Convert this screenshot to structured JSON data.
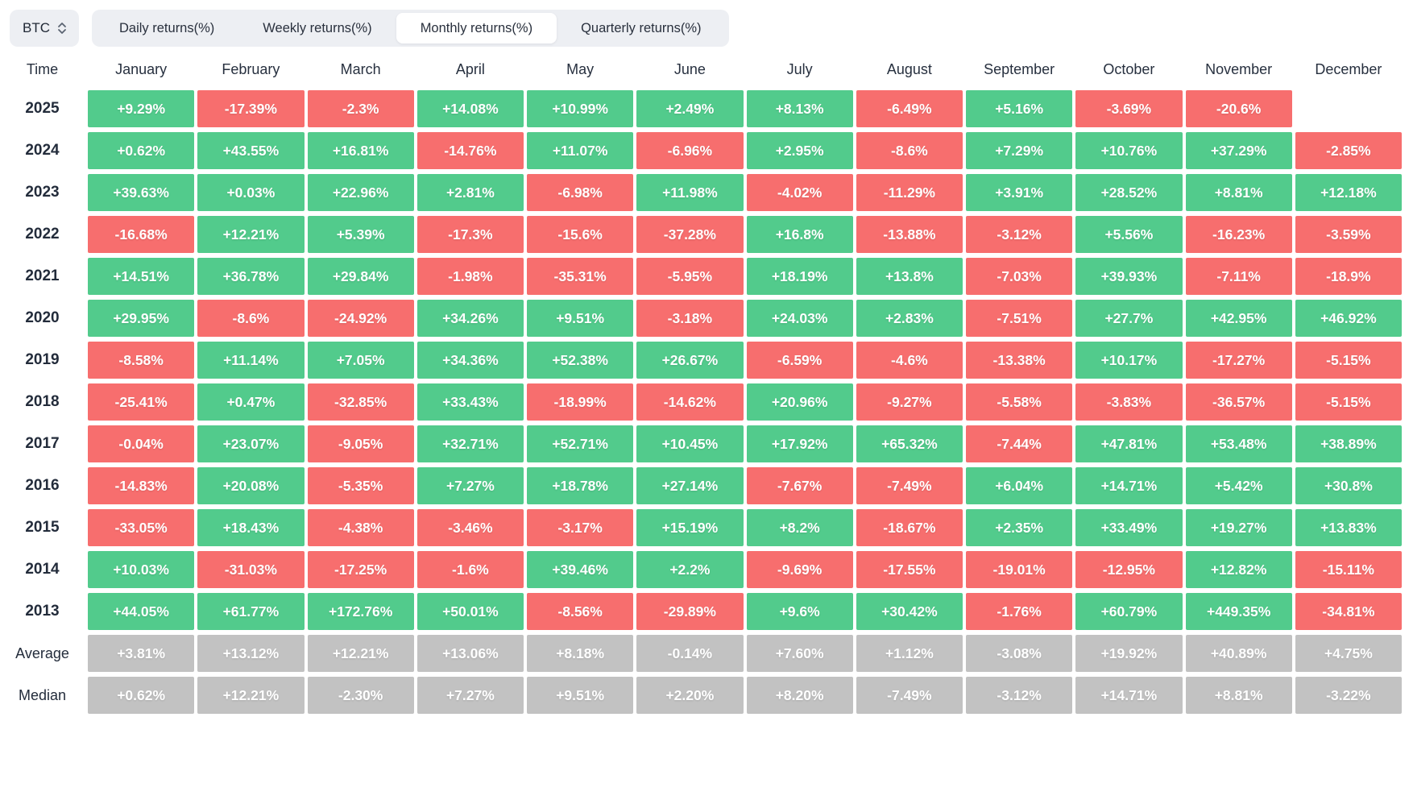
{
  "asset_selector": {
    "value": "BTC",
    "icon": "updown-chevron-icon"
  },
  "tabs": [
    {
      "label": "Daily returns(%)",
      "active": false
    },
    {
      "label": "Weekly returns(%)",
      "active": false
    },
    {
      "label": "Monthly returns(%)",
      "active": true
    },
    {
      "label": "Quarterly returns(%)",
      "active": false
    }
  ],
  "table": {
    "time_header": "Time"
  },
  "colors": {
    "positive": "#52cb8c",
    "negative": "#f76e6e",
    "summary": "#c2c2c2",
    "cell_text": "#ffffff"
  },
  "chart_data": {
    "type": "heatmap",
    "title": "BTC Monthly returns(%)",
    "x_categories": [
      "January",
      "February",
      "March",
      "April",
      "May",
      "June",
      "July",
      "August",
      "September",
      "October",
      "November",
      "December"
    ],
    "y_categories": [
      "2025",
      "2024",
      "2023",
      "2022",
      "2021",
      "2020",
      "2019",
      "2018",
      "2017",
      "2016",
      "2015",
      "2014",
      "2013",
      "Average",
      "Median"
    ],
    "value_unit": "%",
    "color_rule": "green when positive, red when negative, gray for Average/Median rows",
    "rows": [
      {
        "label": "2025",
        "type": "year",
        "values": [
          "+9.29%",
          "-17.39%",
          "-2.3%",
          "+14.08%",
          "+10.99%",
          "+2.49%",
          "+8.13%",
          "-6.49%",
          "+5.16%",
          "-3.69%",
          "-20.6%",
          ""
        ]
      },
      {
        "label": "2024",
        "type": "year",
        "values": [
          "+0.62%",
          "+43.55%",
          "+16.81%",
          "-14.76%",
          "+11.07%",
          "-6.96%",
          "+2.95%",
          "-8.6%",
          "+7.29%",
          "+10.76%",
          "+37.29%",
          "-2.85%"
        ]
      },
      {
        "label": "2023",
        "type": "year",
        "values": [
          "+39.63%",
          "+0.03%",
          "+22.96%",
          "+2.81%",
          "-6.98%",
          "+11.98%",
          "-4.02%",
          "-11.29%",
          "+3.91%",
          "+28.52%",
          "+8.81%",
          "+12.18%"
        ]
      },
      {
        "label": "2022",
        "type": "year",
        "values": [
          "-16.68%",
          "+12.21%",
          "+5.39%",
          "-17.3%",
          "-15.6%",
          "-37.28%",
          "+16.8%",
          "-13.88%",
          "-3.12%",
          "+5.56%",
          "-16.23%",
          "-3.59%"
        ]
      },
      {
        "label": "2021",
        "type": "year",
        "values": [
          "+14.51%",
          "+36.78%",
          "+29.84%",
          "-1.98%",
          "-35.31%",
          "-5.95%",
          "+18.19%",
          "+13.8%",
          "-7.03%",
          "+39.93%",
          "-7.11%",
          "-18.9%"
        ]
      },
      {
        "label": "2020",
        "type": "year",
        "values": [
          "+29.95%",
          "-8.6%",
          "-24.92%",
          "+34.26%",
          "+9.51%",
          "-3.18%",
          "+24.03%",
          "+2.83%",
          "-7.51%",
          "+27.7%",
          "+42.95%",
          "+46.92%"
        ]
      },
      {
        "label": "2019",
        "type": "year",
        "values": [
          "-8.58%",
          "+11.14%",
          "+7.05%",
          "+34.36%",
          "+52.38%",
          "+26.67%",
          "-6.59%",
          "-4.6%",
          "-13.38%",
          "+10.17%",
          "-17.27%",
          "-5.15%"
        ]
      },
      {
        "label": "2018",
        "type": "year",
        "values": [
          "-25.41%",
          "+0.47%",
          "-32.85%",
          "+33.43%",
          "-18.99%",
          "-14.62%",
          "+20.96%",
          "-9.27%",
          "-5.58%",
          "-3.83%",
          "-36.57%",
          "-5.15%"
        ]
      },
      {
        "label": "2017",
        "type": "year",
        "values": [
          "-0.04%",
          "+23.07%",
          "-9.05%",
          "+32.71%",
          "+52.71%",
          "+10.45%",
          "+17.92%",
          "+65.32%",
          "-7.44%",
          "+47.81%",
          "+53.48%",
          "+38.89%"
        ]
      },
      {
        "label": "2016",
        "type": "year",
        "values": [
          "-14.83%",
          "+20.08%",
          "-5.35%",
          "+7.27%",
          "+18.78%",
          "+27.14%",
          "-7.67%",
          "-7.49%",
          "+6.04%",
          "+14.71%",
          "+5.42%",
          "+30.8%"
        ]
      },
      {
        "label": "2015",
        "type": "year",
        "values": [
          "-33.05%",
          "+18.43%",
          "-4.38%",
          "-3.46%",
          "-3.17%",
          "+15.19%",
          "+8.2%",
          "-18.67%",
          "+2.35%",
          "+33.49%",
          "+19.27%",
          "+13.83%"
        ]
      },
      {
        "label": "2014",
        "type": "year",
        "values": [
          "+10.03%",
          "-31.03%",
          "-17.25%",
          "-1.6%",
          "+39.46%",
          "+2.2%",
          "-9.69%",
          "-17.55%",
          "-19.01%",
          "-12.95%",
          "+12.82%",
          "-15.11%"
        ]
      },
      {
        "label": "2013",
        "type": "year",
        "values": [
          "+44.05%",
          "+61.77%",
          "+172.76%",
          "+50.01%",
          "-8.56%",
          "-29.89%",
          "+9.6%",
          "+30.42%",
          "-1.76%",
          "+60.79%",
          "+449.35%",
          "-34.81%"
        ]
      },
      {
        "label": "Average",
        "type": "summary",
        "values": [
          "+3.81%",
          "+13.12%",
          "+12.21%",
          "+13.06%",
          "+8.18%",
          "-0.14%",
          "+7.60%",
          "+1.12%",
          "-3.08%",
          "+19.92%",
          "+40.89%",
          "+4.75%"
        ]
      },
      {
        "label": "Median",
        "type": "summary",
        "values": [
          "+0.62%",
          "+12.21%",
          "-2.30%",
          "+7.27%",
          "+9.51%",
          "+2.20%",
          "+8.20%",
          "-7.49%",
          "-3.12%",
          "+14.71%",
          "+8.81%",
          "-3.22%"
        ]
      }
    ]
  }
}
